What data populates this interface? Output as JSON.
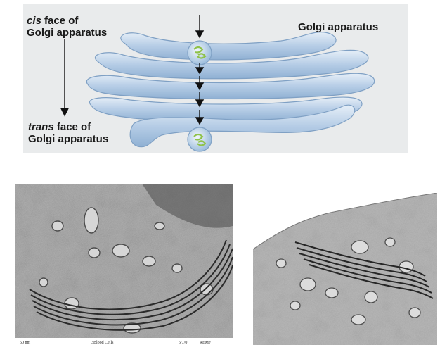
{
  "diagram": {
    "cis_label_italic": "cis",
    "cis_label_rest": " face of",
    "cis_label_line2": "Golgi apparatus",
    "trans_label_italic": "trans",
    "trans_label_rest": " face of",
    "trans_label_line2": "Golgi apparatus",
    "golgi_label": "Golgi apparatus",
    "colors": {
      "panel_bg": "#e9ebec",
      "cisterna_fill": "#b9cfe6",
      "cisterna_edge": "#7fa0c4",
      "vesicle_cargo": "#8fc24a"
    }
  },
  "micrograph_left": {
    "footer": {
      "scale": "50 nm",
      "title": "3Blood Cells",
      "date": "5/7/0",
      "credit": "REMF"
    }
  },
  "micrograph_right": {}
}
